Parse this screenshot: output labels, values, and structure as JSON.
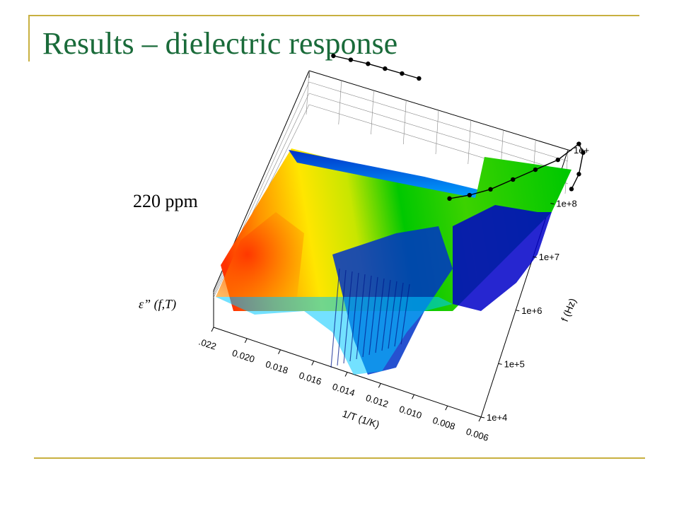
{
  "slide": {
    "title": "Results – dielectric response",
    "label_ppm": "220 ppm",
    "label_eps": "ε” (f,T)"
  },
  "chart_data": {
    "type": "surface",
    "zlabel": "ε” (f,T)",
    "annotation": "220 ppm",
    "x_axis": {
      "label": "1/T (1/K)",
      "ticks": [
        ".022",
        "0.020",
        "0.018",
        "0.016",
        "0.014",
        "0.012",
        "0.010",
        "0.008",
        "0.006"
      ],
      "range": [
        0.022,
        0.006
      ]
    },
    "y_axis": {
      "label": "f (Hz)",
      "scale": "log",
      "ticks": [
        "1e+4",
        "1e+5",
        "1e+6",
        "1e+7",
        "1e+8",
        "1e+"
      ],
      "range": [
        10000,
        1000000000
      ]
    },
    "colormap": [
      "#0000c8",
      "#00a0ff",
      "#00c800",
      "#c8e600",
      "#ffe600",
      "#ff9600",
      "#ff3200"
    ],
    "series": [
      {
        "points": [
          {
            "x": 0.021,
            "f": 2500000000
          },
          {
            "x": 0.02,
            "f": 2700000000
          },
          {
            "x": 0.019,
            "f": 2900000000
          },
          {
            "x": 0.018,
            "f": 3000000000
          },
          {
            "x": 0.017,
            "f": 3100000000
          },
          {
            "x": 0.016,
            "f": 3200000000
          }
        ]
      },
      {
        "points": [
          {
            "x": 0.012,
            "f": 40000000
          },
          {
            "x": 0.011,
            "f": 60000000
          },
          {
            "x": 0.01,
            "f": 100000000
          },
          {
            "x": 0.009,
            "f": 200000000
          },
          {
            "x": 0.008,
            "f": 400000000
          },
          {
            "x": 0.007,
            "f": 800000000
          },
          {
            "x": 0.0062,
            "f": 2000000000
          },
          {
            "x": 0.0058,
            "f": 1500000000
          },
          {
            "x": 0.0056,
            "f": 600000000
          },
          {
            "x": 0.0057,
            "f": 300000000
          }
        ]
      }
    ]
  }
}
